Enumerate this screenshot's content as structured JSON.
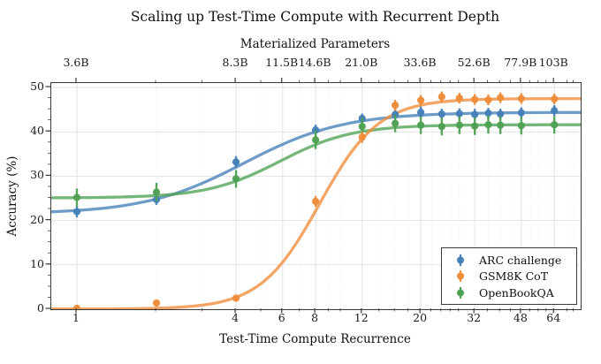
{
  "chart_data": {
    "type": "scatter",
    "title": "Scaling up Test-Time Compute with Recurrent Depth",
    "top_axis": {
      "label": "Materialized Parameters",
      "ticks": [
        {
          "x": 1,
          "label": "3.6B"
        },
        {
          "x": 4,
          "label": "8.3B"
        },
        {
          "x": 6,
          "label": "11.5B"
        },
        {
          "x": 8,
          "label": "14.6B"
        },
        {
          "x": 12,
          "label": "21.0B"
        },
        {
          "x": 20,
          "label": "33.6B"
        },
        {
          "x": 32,
          "label": "52.6B"
        },
        {
          "x": 48,
          "label": "77.9B"
        },
        {
          "x": 64,
          "label": "103B"
        }
      ]
    },
    "x_axis": {
      "label": "Test-Time Compute Recurrence",
      "scale": "log2",
      "range": [
        0.8,
        80.5
      ],
      "major_ticks": [
        1,
        4,
        6,
        8,
        12,
        20,
        32,
        48,
        64
      ],
      "minor_ticks": [
        2,
        3,
        5,
        7,
        9,
        10,
        14,
        16,
        18,
        22,
        24,
        26,
        28,
        36,
        40,
        44,
        52,
        56,
        60,
        72,
        76
      ]
    },
    "y_axis": {
      "label": "Accuracy (%)",
      "range": [
        0,
        51
      ],
      "ticks": [
        0,
        10,
        20,
        30,
        40,
        50
      ],
      "minor_step": 2.5
    },
    "grid": {
      "major": true,
      "minor_vertical_dotted": true
    },
    "x": [
      1,
      2,
      4,
      8,
      12,
      16,
      20,
      24,
      28,
      32,
      36,
      40,
      48,
      64
    ],
    "series": [
      {
        "name": "ARC challenge",
        "color": "#4580b8",
        "values": [
          22.0,
          24.7,
          33.2,
          40.4,
          43.0,
          43.9,
          44.4,
          44.0,
          44.1,
          43.9,
          44.2,
          44.0,
          44.3,
          44.8
        ],
        "err": [
          1.3,
          1.2,
          1.3,
          1.2,
          1.1,
          1.2,
          1.3,
          1.2,
          1.2,
          1.3,
          1.2,
          1.2,
          1.2,
          1.2
        ],
        "fit": {
          "base": 21.5,
          "span": 22.9,
          "mid_log2": 2.1,
          "k": 1.6
        }
      },
      {
        "name": "GSM8K CoT",
        "color": "#ee8c3a",
        "values": [
          0.2,
          1.4,
          2.5,
          24.3,
          38.8,
          46.0,
          47.1,
          47.9,
          47.6,
          47.3,
          47.2,
          47.7,
          47.5,
          47.4
        ],
        "err": [
          0.3,
          0.5,
          0.7,
          1.2,
          1.3,
          1.2,
          1.2,
          1.2,
          1.2,
          1.2,
          1.2,
          1.2,
          1.2,
          1.2
        ],
        "fit": {
          "base": 0.05,
          "span": 47.45,
          "mid_log2": 3.05,
          "k": 2.7
        }
      },
      {
        "name": "OpenBookQA",
        "color": "#4ea153",
        "values": [
          25.2,
          26.4,
          29.4,
          38.2,
          41.2,
          41.9,
          41.5,
          41.2,
          41.5,
          41.3,
          41.6,
          41.5,
          41.4,
          41.6
        ],
        "err": [
          2.0,
          2.1,
          2.0,
          2.1,
          2.0,
          2.0,
          2.0,
          2.0,
          2.0,
          2.0,
          2.0,
          2.0,
          2.0,
          2.0
        ],
        "fit": {
          "base": 25.1,
          "span": 16.5,
          "mid_log2": 2.55,
          "k": 2.2
        }
      }
    ],
    "legend": {
      "position": "lower right"
    },
    "draw_order": [
      "ARC challenge",
      "OpenBookQA",
      "GSM8K CoT"
    ]
  }
}
